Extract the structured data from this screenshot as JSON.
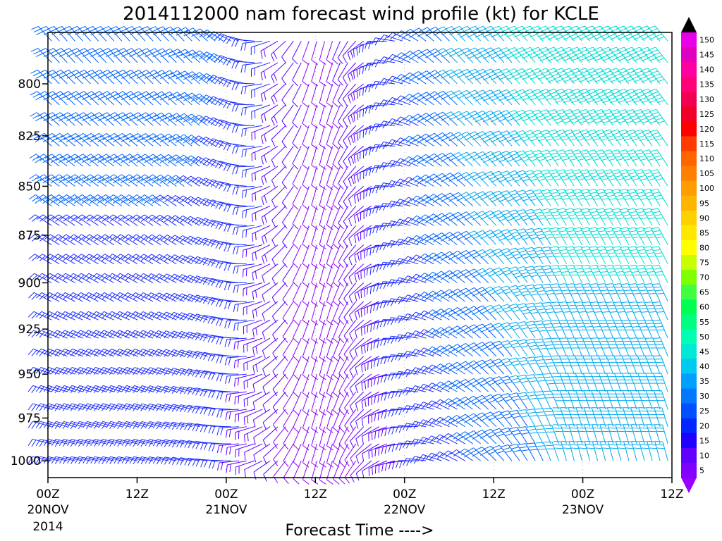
{
  "chart_data": {
    "type": "wind-barb",
    "title": "2014112000 nam forecast wind profile (kt) for KCLE",
    "xlabel": "Forecast Time ---->",
    "x_range_hours": [
      0,
      84
    ],
    "y_range_hpa": [
      1010,
      776
    ],
    "y_ticks": [
      {
        "value": 800,
        "label": "800"
      },
      {
        "value": 825,
        "label": "825"
      },
      {
        "value": 850,
        "label": "850"
      },
      {
        "value": 875,
        "label": "875"
      },
      {
        "value": 900,
        "label": "900"
      },
      {
        "value": 925,
        "label": "925"
      },
      {
        "value": 950,
        "label": "950"
      },
      {
        "value": 975,
        "label": "975"
      },
      {
        "value": 1000,
        "label": "1000"
      }
    ],
    "x_ticks": [
      {
        "hour": 0,
        "label": "00Z",
        "date": "20NOV",
        "year": "2014"
      },
      {
        "hour": 12,
        "label": "12Z",
        "date": "",
        "year": ""
      },
      {
        "hour": 24,
        "label": "00Z",
        "date": "21NOV",
        "year": ""
      },
      {
        "hour": 36,
        "label": "12Z",
        "date": "",
        "year": ""
      },
      {
        "hour": 48,
        "label": "00Z",
        "date": "22NOV",
        "year": ""
      },
      {
        "hour": 60,
        "label": "12Z",
        "date": "",
        "year": ""
      },
      {
        "hour": 72,
        "label": "00Z",
        "date": "23NOV",
        "year": ""
      },
      {
        "hour": 84,
        "label": "12Z",
        "date": "",
        "year": ""
      }
    ],
    "colorbar": {
      "units": "kt",
      "labels": [
        "150",
        "145",
        "140",
        "135",
        "130",
        "125",
        "120",
        "115",
        "110",
        "105",
        "100",
        "95",
        "90",
        "85",
        "80",
        "75",
        "70",
        "65",
        "60",
        "55",
        "50",
        "45",
        "40",
        "35",
        "30",
        "25",
        "20",
        "15",
        "10",
        "5"
      ],
      "colors": [
        "#e800e8",
        "#e000c0",
        "#ff00a0",
        "#ff0078",
        "#f00050",
        "#f00028",
        "#ff0000",
        "#ff3c00",
        "#ff6400",
        "#ff8000",
        "#ff9c00",
        "#ffb400",
        "#ffd000",
        "#ffe800",
        "#ffff00",
        "#c8ff00",
        "#80ff00",
        "#40ff40",
        "#00ff50",
        "#00ff80",
        "#00ffb0",
        "#00e8d8",
        "#00c8f0",
        "#00a0ff",
        "#0078ff",
        "#0050ff",
        "#0028ff",
        "#2000ff",
        "#6000ff",
        "#8000ff"
      ],
      "top_arrow_color": "#000000",
      "bottom_arrow_color": "#9a00ff"
    },
    "barb_field": {
      "hour_step": 1,
      "levels_hpa": [
        780,
        790,
        800,
        810,
        820,
        830,
        840,
        850,
        860,
        870,
        880,
        890,
        900,
        910,
        920,
        930,
        940,
        950,
        960,
        970,
        980,
        990,
        1000
      ],
      "description": "Westerly 25-30 kt winds early shifting northerly and weakening (~10-15 kt) near 21NOV 12Z, then backing southwesterly and strengthening to 40-50 kt through 22-23NOV"
    }
  }
}
